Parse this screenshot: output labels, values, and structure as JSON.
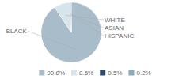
{
  "chart_data": {
    "type": "pie",
    "categories": [
      "BLACK",
      "WHITE",
      "ASIAN",
      "HISPANIC"
    ],
    "values": [
      90.8,
      8.6,
      0.5,
      0.2
    ],
    "value_labels": [
      "90.8%",
      "8.6%",
      "0.5%",
      "0.2%"
    ],
    "colors": [
      "#a8bcca",
      "#d6e4ec",
      "#2e4a6b",
      "#8aaabb"
    ],
    "legend": "bottom"
  }
}
